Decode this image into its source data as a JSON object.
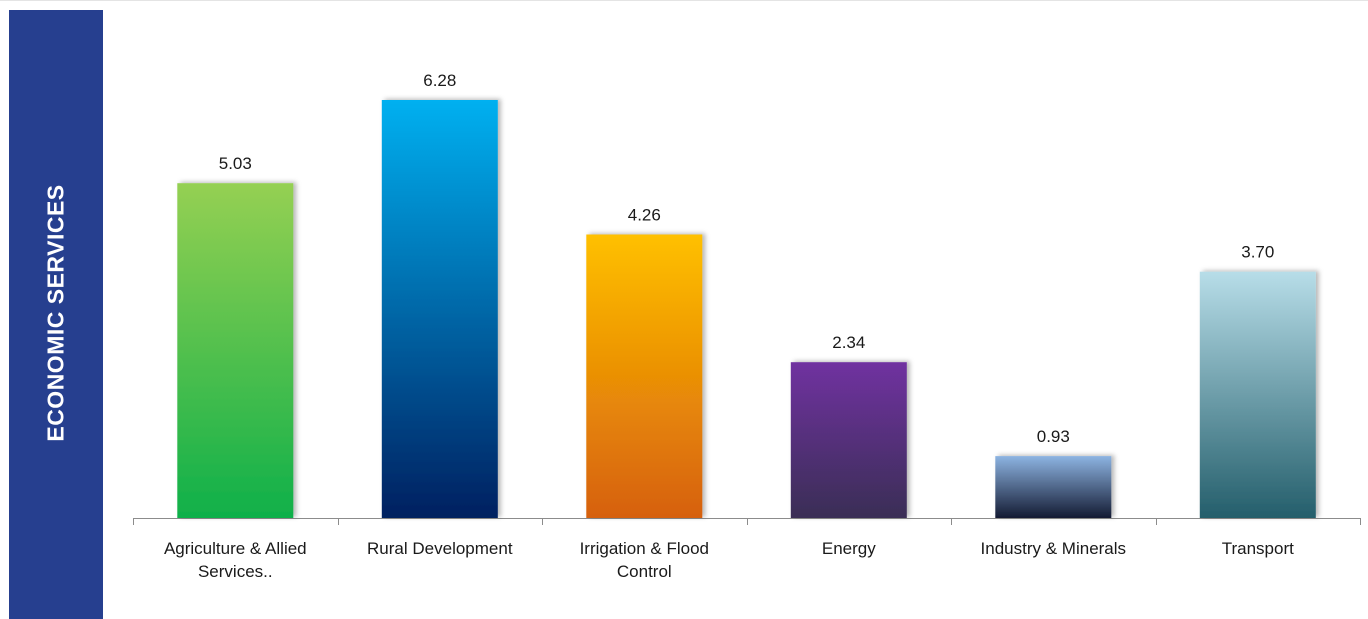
{
  "side_title": "ECONOMIC SERVICES",
  "chart_data": {
    "type": "bar",
    "categories": [
      [
        "Agriculture & Allied",
        "Services.."
      ],
      [
        "Rural Development"
      ],
      [
        "Irrigation & Flood",
        "Control"
      ],
      [
        "Energy"
      ],
      [
        "Industry & Minerals"
      ],
      [
        "Transport"
      ]
    ],
    "values": [
      5.03,
      6.28,
      4.26,
      2.34,
      0.93,
      3.7
    ],
    "value_labels": [
      "5.03",
      "6.28",
      "4.26",
      "2.34",
      "0.93",
      "3.70"
    ],
    "ylim": [
      0,
      6.28
    ],
    "grid": false,
    "legend": "none",
    "colors": [
      [
        "#95d052",
        "#0fb04a"
      ],
      [
        "#00b0f0",
        "#002060"
      ],
      [
        "#ffc000",
        "#d6600c"
      ],
      [
        "#7030a0",
        "#3a2f55"
      ],
      [
        "#8db4e2",
        "#141b33"
      ],
      [
        "#b7dde8",
        "#245e6b"
      ]
    ]
  }
}
